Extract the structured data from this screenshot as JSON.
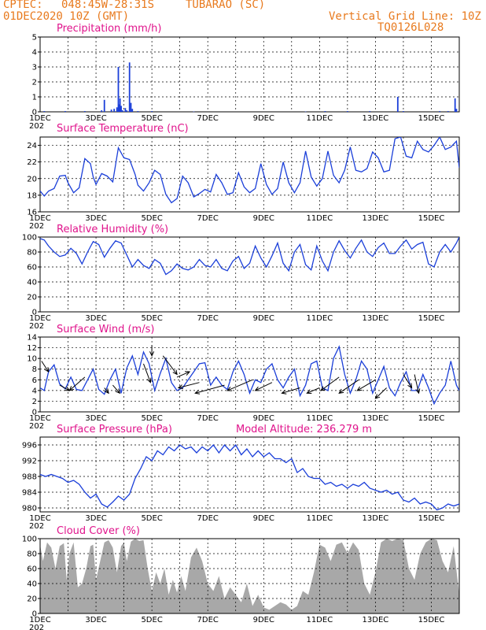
{
  "header": {
    "source": "CPTEC:",
    "coords": "048:45W-28:31S",
    "station": "TUBARAO (SC)",
    "run": "01DEC2020 10Z (GMT)",
    "grid_note": "Vertical Grid Line: 10Z",
    "code": "TQ0126L028"
  },
  "colors": {
    "header": "#e87a1e",
    "title": "#e0148c",
    "line": "#1b3fd9",
    "bar": "#1b3fd9",
    "cloud": "#a8a8a8",
    "grid": "#000000"
  },
  "x_axis": {
    "date_labels": [
      "1DEC",
      "3DEC",
      "5DEC",
      "7DEC",
      "9DEC",
      "11DEC",
      "13DEC",
      "15DEC"
    ],
    "clipped_label": "202"
  },
  "chart_data": [
    {
      "id": "precip",
      "type": "bar",
      "title": "Precipitation (mm/h)",
      "unit": "mm/h",
      "ylim": [
        0,
        5
      ],
      "yticks": [
        0,
        1,
        2,
        3,
        4,
        5
      ],
      "x_unit": "days since 01DEC2020 10Z",
      "bars": [
        [
          0.15,
          0.05
        ],
        [
          0.9,
          0.05
        ],
        [
          1.6,
          0.05
        ],
        [
          2.2,
          0.1
        ],
        [
          2.3,
          0.8
        ],
        [
          2.55,
          0.15
        ],
        [
          2.65,
          0.2
        ],
        [
          2.75,
          0.3
        ],
        [
          2.8,
          3.0
        ],
        [
          2.83,
          0.5
        ],
        [
          2.86,
          0.9
        ],
        [
          2.9,
          0.4
        ],
        [
          2.95,
          0.1
        ],
        [
          3.05,
          0.25
        ],
        [
          3.1,
          0.1
        ],
        [
          3.2,
          3.3
        ],
        [
          3.25,
          0.6
        ],
        [
          3.3,
          0.2
        ],
        [
          3.5,
          0.05
        ],
        [
          4.0,
          0.05
        ],
        [
          5.5,
          0.02
        ],
        [
          9.5,
          0.02
        ],
        [
          10.2,
          0.05
        ],
        [
          11.0,
          0.05
        ],
        [
          11.8,
          0.05
        ],
        [
          12.8,
          1.0
        ],
        [
          13.0,
          0.05
        ],
        [
          14.3,
          0.05
        ],
        [
          14.6,
          0.05
        ],
        [
          14.85,
          0.9
        ],
        [
          14.9,
          0.2
        ]
      ]
    },
    {
      "id": "temp",
      "type": "line",
      "title": "Surface Temperature (nC)",
      "unit": "°C",
      "ylim": [
        16,
        25
      ],
      "yticks": [
        16,
        18,
        20,
        22,
        24
      ],
      "x": [
        0,
        0.15,
        0.3,
        0.5,
        0.7,
        0.9,
        1.0,
        1.2,
        1.4,
        1.6,
        1.8,
        1.9,
        2.0,
        2.2,
        2.4,
        2.6,
        2.8,
        3.0,
        3.2,
        3.4,
        3.5,
        3.7,
        3.9,
        4.1,
        4.3,
        4.5,
        4.7,
        4.9,
        5.1,
        5.3,
        5.5,
        5.7,
        5.9,
        6.1,
        6.3,
        6.5,
        6.7,
        6.9,
        7.1,
        7.3,
        7.5,
        7.7,
        7.9,
        8.1,
        8.3,
        8.5,
        8.7,
        8.9,
        9.1,
        9.3,
        9.5,
        9.7,
        9.9,
        10.1,
        10.3,
        10.5,
        10.7,
        10.9,
        11.1,
        11.3,
        11.5,
        11.7,
        11.9,
        12.1,
        12.3,
        12.5,
        12.7,
        12.9,
        13.1,
        13.3,
        13.5,
        13.7,
        13.9,
        14.1,
        14.3,
        14.5,
        14.7,
        14.9,
        15.0
      ],
      "y": [
        18.5,
        17.9,
        18.5,
        18.8,
        20.3,
        20.4,
        19.5,
        18.3,
        18.9,
        22.4,
        21.8,
        20.2,
        19.3,
        20.6,
        20.3,
        19.6,
        23.7,
        22.5,
        22.3,
        20.5,
        19.2,
        18.5,
        19.5,
        21.0,
        20.5,
        18.1,
        17.1,
        17.6,
        20.3,
        19.5,
        17.8,
        18.2,
        18.7,
        18.4,
        20.5,
        19.5,
        18.1,
        18.3,
        20.7,
        19.0,
        18.3,
        18.8,
        21.8,
        19.3,
        18.1,
        18.8,
        22.0,
        19.5,
        18.3,
        19.5,
        23.3,
        20.2,
        19.1,
        20.0,
        23.3,
        20.4,
        19.5,
        21.0,
        23.8,
        21.0,
        20.8,
        21.2,
        23.2,
        22.5,
        20.8,
        21.0,
        24.8,
        25.0,
        22.7,
        22.5,
        24.5,
        23.5,
        23.2,
        24.0,
        25.0,
        23.5,
        23.8,
        24.5,
        21.3
      ]
    },
    {
      "id": "rh",
      "type": "line",
      "title": "Relative Humidity (%)",
      "unit": "%",
      "ylim": [
        0,
        100
      ],
      "yticks": [
        0,
        20,
        40,
        60,
        80,
        100
      ],
      "x": [
        0,
        0.15,
        0.3,
        0.5,
        0.7,
        0.9,
        1.1,
        1.3,
        1.5,
        1.7,
        1.9,
        2.1,
        2.3,
        2.5,
        2.7,
        2.9,
        3.1,
        3.3,
        3.5,
        3.7,
        3.9,
        4.1,
        4.3,
        4.5,
        4.7,
        4.9,
        5.1,
        5.3,
        5.5,
        5.7,
        5.9,
        6.1,
        6.3,
        6.5,
        6.7,
        6.9,
        7.1,
        7.3,
        7.5,
        7.7,
        7.9,
        8.1,
        8.3,
        8.5,
        8.7,
        8.9,
        9.1,
        9.3,
        9.5,
        9.7,
        9.9,
        10.1,
        10.3,
        10.5,
        10.7,
        10.9,
        11.1,
        11.3,
        11.5,
        11.7,
        11.9,
        12.1,
        12.3,
        12.5,
        12.7,
        12.9,
        13.1,
        13.3,
        13.5,
        13.7,
        13.9,
        14.1,
        14.3,
        14.5,
        14.7,
        14.9,
        15.0
      ],
      "y": [
        98,
        96,
        88,
        80,
        74,
        76,
        85,
        78,
        64,
        80,
        94,
        90,
        73,
        85,
        95,
        92,
        76,
        60,
        70,
        62,
        58,
        70,
        65,
        50,
        55,
        64,
        58,
        56,
        60,
        70,
        62,
        60,
        70,
        58,
        55,
        68,
        74,
        58,
        65,
        88,
        72,
        60,
        75,
        92,
        65,
        55,
        80,
        90,
        63,
        56,
        88,
        68,
        55,
        80,
        95,
        82,
        72,
        85,
        96,
        80,
        74,
        86,
        92,
        78,
        78,
        88,
        96,
        84,
        90,
        93,
        64,
        60,
        80,
        90,
        80,
        92,
        100
      ]
    },
    {
      "id": "wind",
      "type": "line",
      "title": "Surface Wind (m/s)",
      "unit": "m/s",
      "ylim": [
        0,
        14
      ],
      "yticks": [
        0,
        2,
        4,
        6,
        8,
        10,
        12,
        14
      ],
      "x": [
        0,
        0.15,
        0.3,
        0.5,
        0.7,
        0.9,
        1.1,
        1.3,
        1.5,
        1.7,
        1.9,
        2.1,
        2.3,
        2.5,
        2.7,
        2.9,
        3.1,
        3.3,
        3.5,
        3.7,
        3.9,
        4.1,
        4.3,
        4.5,
        4.7,
        4.9,
        5.1,
        5.3,
        5.5,
        5.7,
        5.9,
        6.1,
        6.3,
        6.5,
        6.7,
        6.9,
        7.1,
        7.3,
        7.5,
        7.7,
        7.9,
        8.1,
        8.3,
        8.5,
        8.7,
        8.9,
        9.1,
        9.3,
        9.5,
        9.7,
        9.9,
        10.1,
        10.3,
        10.5,
        10.7,
        10.9,
        11.1,
        11.3,
        11.5,
        11.7,
        11.9,
        12.1,
        12.3,
        12.5,
        12.7,
        12.9,
        13.1,
        13.3,
        13.5,
        13.7,
        13.9,
        14.1,
        14.3,
        14.5,
        14.7,
        14.9,
        15.0
      ],
      "y": [
        4.5,
        4.0,
        7.5,
        8.8,
        5.2,
        4.3,
        6.5,
        4.2,
        4.0,
        6.0,
        8.0,
        4.2,
        3.3,
        6.0,
        8.0,
        3.5,
        8.2,
        10.5,
        7.0,
        11.2,
        9.0,
        4.0,
        7.2,
        10.0,
        5.5,
        4.0,
        4.5,
        6.0,
        7.5,
        9.0,
        9.2,
        5.0,
        6.5,
        5.0,
        4.2,
        7.5,
        9.5,
        7.0,
        3.5,
        6.0,
        5.5,
        8.0,
        9.0,
        6.0,
        4.5,
        6.5,
        8.0,
        3.0,
        5.0,
        9.0,
        9.5,
        4.5,
        4.0,
        10.0,
        12.2,
        7.0,
        3.5,
        6.0,
        9.5,
        8.0,
        3.5,
        6.0,
        8.5,
        4.5,
        3.0,
        5.5,
        7.5,
        4.0,
        4.0,
        7.0,
        4.5,
        1.5,
        3.5,
        5.0,
        9.5,
        5.0,
        4.0
      ]
    },
    {
      "id": "pressure",
      "type": "line",
      "title": "Surface Pressure (hPa)",
      "title_extra": "Model Altitude: 236.279 m",
      "unit": "hPa",
      "ylim": [
        979,
        998
      ],
      "yticks": [
        980,
        984,
        988,
        992,
        996
      ],
      "x": [
        0,
        0.2,
        0.4,
        0.6,
        0.8,
        1.0,
        1.2,
        1.4,
        1.6,
        1.8,
        2.0,
        2.2,
        2.4,
        2.6,
        2.8,
        3.0,
        3.2,
        3.4,
        3.6,
        3.8,
        4.0,
        4.2,
        4.4,
        4.6,
        4.8,
        5.0,
        5.2,
        5.4,
        5.6,
        5.8,
        6.0,
        6.2,
        6.4,
        6.6,
        6.8,
        7.0,
        7.2,
        7.4,
        7.6,
        7.8,
        8.0,
        8.2,
        8.4,
        8.6,
        8.8,
        9.0,
        9.2,
        9.4,
        9.6,
        9.8,
        10.0,
        10.2,
        10.4,
        10.6,
        10.8,
        11.0,
        11.2,
        11.4,
        11.6,
        11.8,
        12.0,
        12.2,
        12.4,
        12.6,
        12.8,
        13.0,
        13.2,
        13.4,
        13.6,
        13.8,
        14.0,
        14.2,
        14.4,
        14.6,
        14.8,
        15.0
      ],
      "y": [
        988.5,
        988.0,
        988.5,
        988.0,
        987.5,
        986.5,
        987.0,
        986.0,
        984.0,
        982.5,
        983.5,
        981.0,
        980.2,
        981.5,
        983.0,
        982.0,
        983.5,
        987.5,
        990.0,
        993.0,
        992.0,
        994.5,
        993.5,
        995.5,
        994.5,
        996.0,
        995.0,
        995.5,
        994.0,
        995.5,
        994.5,
        996.0,
        994.0,
        996.0,
        994.5,
        996.0,
        993.5,
        995.0,
        993.0,
        994.5,
        993.0,
        994.0,
        992.5,
        992.5,
        991.5,
        992.5,
        989.0,
        990.0,
        988.0,
        987.5,
        987.5,
        986.0,
        986.5,
        985.5,
        986.0,
        985.0,
        986.0,
        985.5,
        986.5,
        985.0,
        984.5,
        984.0,
        984.5,
        983.5,
        984.0,
        982.0,
        981.5,
        982.5,
        981.0,
        981.5,
        981.0,
        979.5,
        980.0,
        981.0,
        980.5,
        981.0
      ]
    },
    {
      "id": "cloud",
      "type": "area",
      "title": "Cloud Cover (%)",
      "unit": "%",
      "ylim": [
        0,
        100
      ],
      "yticks": [
        0,
        20,
        40,
        60,
        80,
        100
      ],
      "x": [
        0,
        0.1,
        0.25,
        0.4,
        0.55,
        0.7,
        0.85,
        0.95,
        1.05,
        1.2,
        1.35,
        1.5,
        1.65,
        1.8,
        1.9,
        2.0,
        2.15,
        2.3,
        2.45,
        2.6,
        2.75,
        2.9,
        3.0,
        3.1,
        3.25,
        3.4,
        3.55,
        3.7,
        3.85,
        4.0,
        4.15,
        4.3,
        4.45,
        4.6,
        4.75,
        4.9,
        5.05,
        5.2,
        5.4,
        5.6,
        5.8,
        6.0,
        6.2,
        6.4,
        6.6,
        6.8,
        7.0,
        7.2,
        7.4,
        7.6,
        7.8,
        8.0,
        8.2,
        8.4,
        8.6,
        8.8,
        9.0,
        9.2,
        9.4,
        9.6,
        9.8,
        10.0,
        10.2,
        10.4,
        10.6,
        10.8,
        11.0,
        11.2,
        11.4,
        11.6,
        11.8,
        12.0,
        12.2,
        12.4,
        12.6,
        12.8,
        13.0,
        13.2,
        13.4,
        13.6,
        13.8,
        14.0,
        14.2,
        14.4,
        14.6,
        14.8,
        15.0
      ],
      "y": [
        92,
        70,
        95,
        88,
        60,
        90,
        94,
        45,
        80,
        95,
        35,
        40,
        60,
        90,
        92,
        45,
        70,
        95,
        98,
        88,
        55,
        90,
        95,
        70,
        96,
        100,
        97,
        98,
        60,
        30,
        55,
        40,
        60,
        25,
        45,
        28,
        50,
        30,
        75,
        88,
        70,
        40,
        30,
        50,
        20,
        35,
        25,
        15,
        40,
        10,
        25,
        8,
        5,
        10,
        15,
        12,
        5,
        10,
        30,
        25,
        55,
        92,
        88,
        70,
        92,
        95,
        80,
        95,
        85,
        40,
        25,
        55,
        95,
        100,
        97,
        100,
        98,
        60,
        45,
        80,
        95,
        100,
        98,
        70,
        55,
        90,
        25
      ]
    },
    {
      "id": "wind_vectors",
      "type": "scatter",
      "title": "Surface Wind (m/s)",
      "x": [
        0.05,
        0.7,
        1.6,
        2.3,
        2.6,
        3.7,
        4.0,
        4.4,
        4.9,
        5.7,
        6.6,
        7.6,
        8.3,
        9.3,
        10.0,
        10.7,
        11.4,
        12.0,
        12.4,
        13.0,
        13.4
      ],
      "y": [
        9.5,
        5.0,
        6.5,
        4.5,
        5.0,
        9.0,
        12.5,
        10.5,
        6.5,
        5.5,
        5.0,
        6.0,
        5.5,
        4.5,
        4.5,
        6.5,
        6.0,
        6.0,
        4.5,
        7.0,
        7.0
      ],
      "dx": [
        0.25,
        0.35,
        -0.55,
        0.15,
        0.25,
        0.25,
        0.0,
        0.5,
        0.45,
        -0.75,
        -1.05,
        -0.9,
        -0.6,
        -0.65,
        -0.45,
        -0.65,
        -0.7,
        -0.65,
        -0.4,
        0.3,
        0.15
      ],
      "dy": [
        -2.0,
        -1.0,
        -2.5,
        -1.0,
        -1.5,
        -3.5,
        -2.0,
        -3.5,
        1.0,
        -1.0,
        -1.5,
        -2.0,
        -1.5,
        -1.0,
        -1.0,
        -2.5,
        -2.5,
        -2.0,
        -2.0,
        -2.5,
        -3.5
      ]
    }
  ]
}
